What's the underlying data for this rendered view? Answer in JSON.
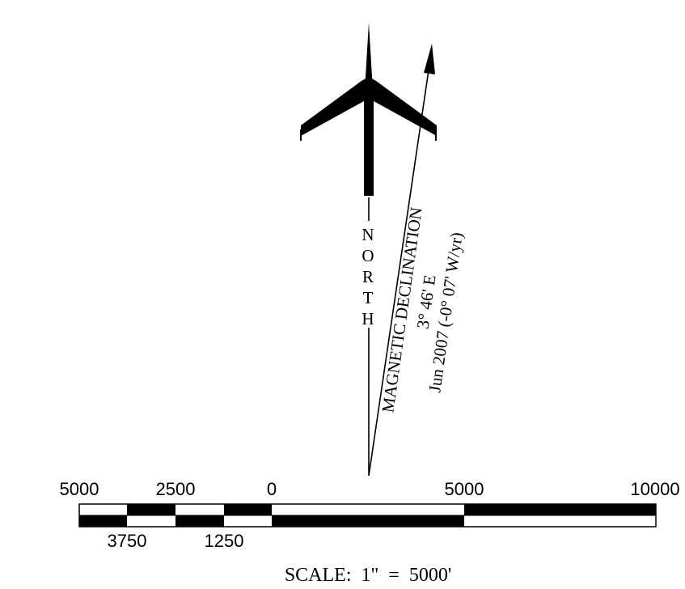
{
  "north_arrow": {
    "letters": [
      "N",
      "O",
      "R",
      "T",
      "H"
    ],
    "icon": "airplane-icon"
  },
  "declination": {
    "title": "MAGNETIC DECLINATION",
    "angle": "3° 46' E",
    "date_rate": "Jun 2007 (-0° 07' W/yr)",
    "angle_degrees": 3.77
  },
  "scale_bar": {
    "top_labels": [
      "5000",
      "2500",
      "0",
      "5000",
      "10000"
    ],
    "bottom_labels": [
      "3750",
      "1250"
    ],
    "scale_text": "SCALE:  1\"  =  5000'",
    "colors": {
      "ink": "#000000",
      "paper": "#ffffff"
    }
  }
}
